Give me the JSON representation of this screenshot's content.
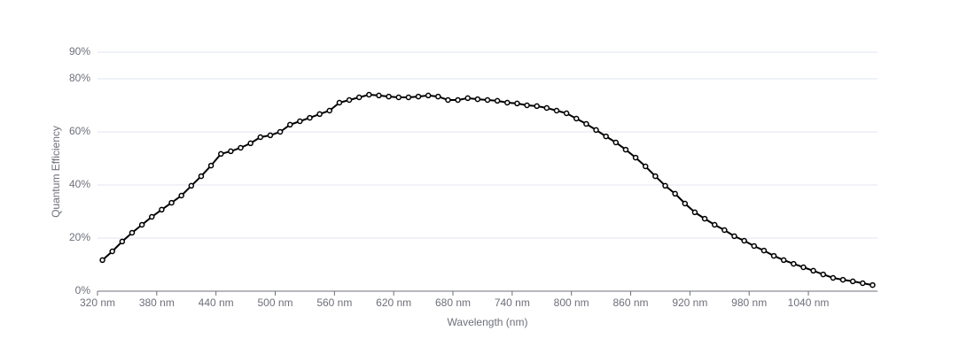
{
  "chart_data": {
    "type": "line",
    "x_label": "Wavelength (nm)",
    "y_label": "Quantum Efficiency",
    "categories": [
      "320 nm",
      null,
      null,
      null,
      null,
      null,
      "380 nm",
      null,
      null,
      null,
      null,
      null,
      "440 nm",
      null,
      null,
      null,
      null,
      null,
      "500 nm",
      null,
      null,
      null,
      null,
      null,
      "560 nm",
      null,
      null,
      null,
      null,
      null,
      "620 nm",
      null,
      null,
      null,
      null,
      null,
      "680 nm",
      null,
      null,
      null,
      null,
      null,
      "740 nm",
      null,
      null,
      null,
      null,
      null,
      "800 nm",
      null,
      null,
      null,
      null,
      null,
      "860 nm",
      null,
      null,
      null,
      null,
      null,
      "920 nm",
      null,
      null,
      null,
      null,
      null,
      "980 nm",
      null,
      null,
      null,
      null,
      null,
      "1040 nm",
      null,
      null,
      null,
      null,
      null,
      null
    ],
    "values": [
      11.7,
      15,
      18.7,
      22,
      25,
      28,
      30.7,
      33.3,
      36,
      39.7,
      43.3,
      47.3,
      51.7,
      52.7,
      54,
      55.7,
      58,
      58.7,
      60,
      62.7,
      64,
      65.3,
      66.7,
      68,
      71,
      72,
      73,
      74,
      73.7,
      73.3,
      73,
      73,
      73.3,
      73.7,
      73.3,
      72,
      72,
      72.7,
      72.3,
      72,
      71.7,
      71,
      70.7,
      70,
      69.7,
      69,
      68,
      67,
      65,
      63,
      60.7,
      58.3,
      56,
      53.3,
      50.3,
      47,
      43.3,
      39.7,
      36.7,
      33,
      29.7,
      27.3,
      25,
      23,
      20.7,
      19,
      17,
      15.3,
      13.3,
      11.7,
      10.3,
      9,
      7.7,
      6.3,
      5,
      4.3,
      3.7,
      3,
      2.3
    ],
    "color": "#000000",
    "ylim": [
      0,
      90
    ],
    "yticks": [
      {
        "value": 0,
        "label": "0%"
      },
      {
        "value": 20,
        "label": "20%"
      },
      {
        "value": 40,
        "label": "40%"
      },
      {
        "value": 60,
        "label": "60%"
      },
      {
        "value": 80,
        "label": "80%"
      },
      {
        "value": 90,
        "label": "90%"
      }
    ],
    "grid": true
  }
}
